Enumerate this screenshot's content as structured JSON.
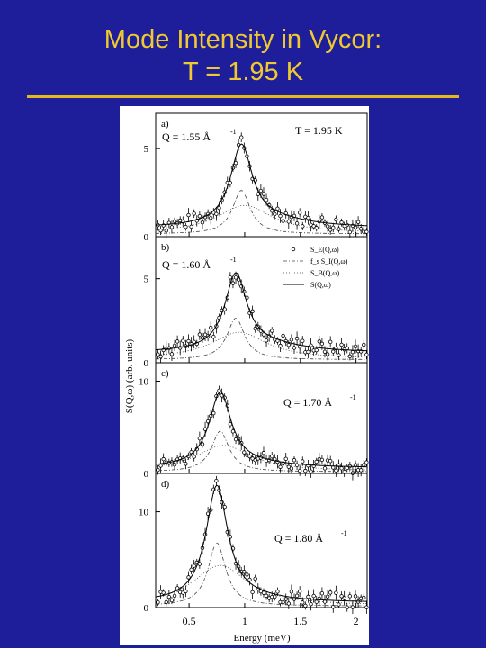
{
  "slide": {
    "title_line1": "Mode Intensity in Vycor:",
    "title_line2": "T = 1.95 K"
  },
  "chart_data": {
    "type": "line",
    "xlabel": "Energy (meV)",
    "ylabel": "S(Q,ω) (arb. units)",
    "xlim": [
      0.2,
      2.1
    ],
    "xticks": [
      0.5,
      1,
      1.5,
      2
    ],
    "temperature_label": "T = 1.95 K",
    "legend": [
      "S_E(Q,ω)",
      "f_s S_I(Q,ω)",
      "S_B(Q,ω)",
      "S(Q,ω)"
    ],
    "panels": [
      {
        "letter": "a)",
        "q_label": "Q = 1.55 Å",
        "ylim": [
          0,
          7
        ],
        "yticks": [
          0,
          5
        ],
        "peak_x": 0.97,
        "peak_y": 4.5,
        "baseline": 0.5
      },
      {
        "letter": "b)",
        "q_label": "Q = 1.60 Å",
        "ylim": [
          0,
          7.5
        ],
        "yticks": [
          0,
          5
        ],
        "peak_x": 0.92,
        "peak_y": 4.5,
        "baseline": 0.6
      },
      {
        "letter": "c)",
        "q_label": "Q = 1.70 Å",
        "ylim": [
          0,
          12
        ],
        "yticks": [
          0,
          10
        ],
        "peak_x": 0.78,
        "peak_y": 8.0,
        "baseline": 0.6
      },
      {
        "letter": "d)",
        "q_label": "Q = 1.80 Å",
        "ylim": [
          0,
          14
        ],
        "yticks": [
          0,
          10
        ],
        "peak_x": 0.75,
        "peak_y": 12.0,
        "baseline": 0.5
      }
    ]
  }
}
